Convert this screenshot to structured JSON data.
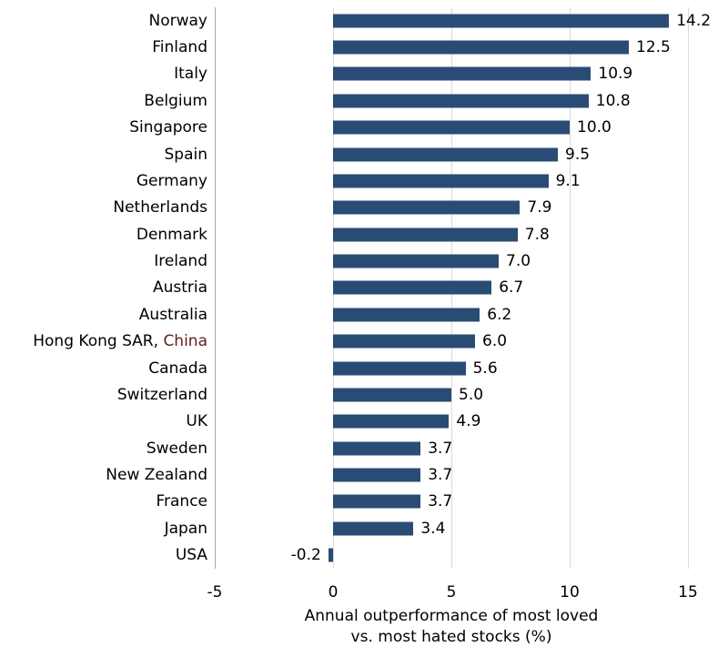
{
  "figure": {
    "background": "#ffffff"
  },
  "chart_data": {
    "type": "bar",
    "orientation": "horizontal",
    "categories": [
      "Norway",
      "Finland",
      "Italy",
      "Belgium",
      "Singapore",
      "Spain",
      "Germany",
      "Netherlands",
      "Denmark",
      "Ireland",
      "Austria",
      "Australia",
      "Hong Kong SAR, China",
      "Canada",
      "Switzerland",
      "UK",
      "Sweden",
      "New Zealand",
      "France",
      "Japan",
      "USA"
    ],
    "values": [
      14.2,
      12.5,
      10.9,
      10.8,
      10.0,
      9.5,
      9.1,
      7.9,
      7.8,
      7.0,
      6.7,
      6.2,
      6.0,
      5.6,
      5.0,
      4.9,
      3.7,
      3.7,
      3.7,
      3.4,
      -0.2
    ],
    "value_labels": [
      "14.2",
      "12.5",
      "10.9",
      "10.8",
      "10.0",
      "9.5",
      "9.1",
      "7.9",
      "7.8",
      "7.0",
      "6.7",
      "6.2",
      "6.0",
      "5.6",
      "5.0",
      "4.9",
      "3.7",
      "3.7",
      "3.7",
      "3.4",
      "-0.2"
    ],
    "xlabel": "Annual outperformance of most loved vs. most hated stocks (%)",
    "xlabel_lines": [
      "Annual outperformance of most loved",
      "vs. most hated stocks (%)"
    ],
    "xticks": [
      -5,
      0,
      5,
      10,
      15
    ],
    "xtick_labels": [
      "-5",
      "0",
      "5",
      "10",
      "15"
    ],
    "xlim": [
      -5,
      15.7
    ],
    "grid": true,
    "legend": false,
    "colors": {
      "bar": "#2A4C74",
      "gridline": "#D9D9D9",
      "axis_line": "#A6A6A6",
      "text": "#000000",
      "hk_china_highlight": "#5C1F1F"
    },
    "category_label_parts": {
      "12": [
        {
          "text": "Hong Kong SAR, ",
          "color": "#000000"
        },
        {
          "text": "China",
          "color": "#5C1F1F"
        }
      ]
    }
  }
}
